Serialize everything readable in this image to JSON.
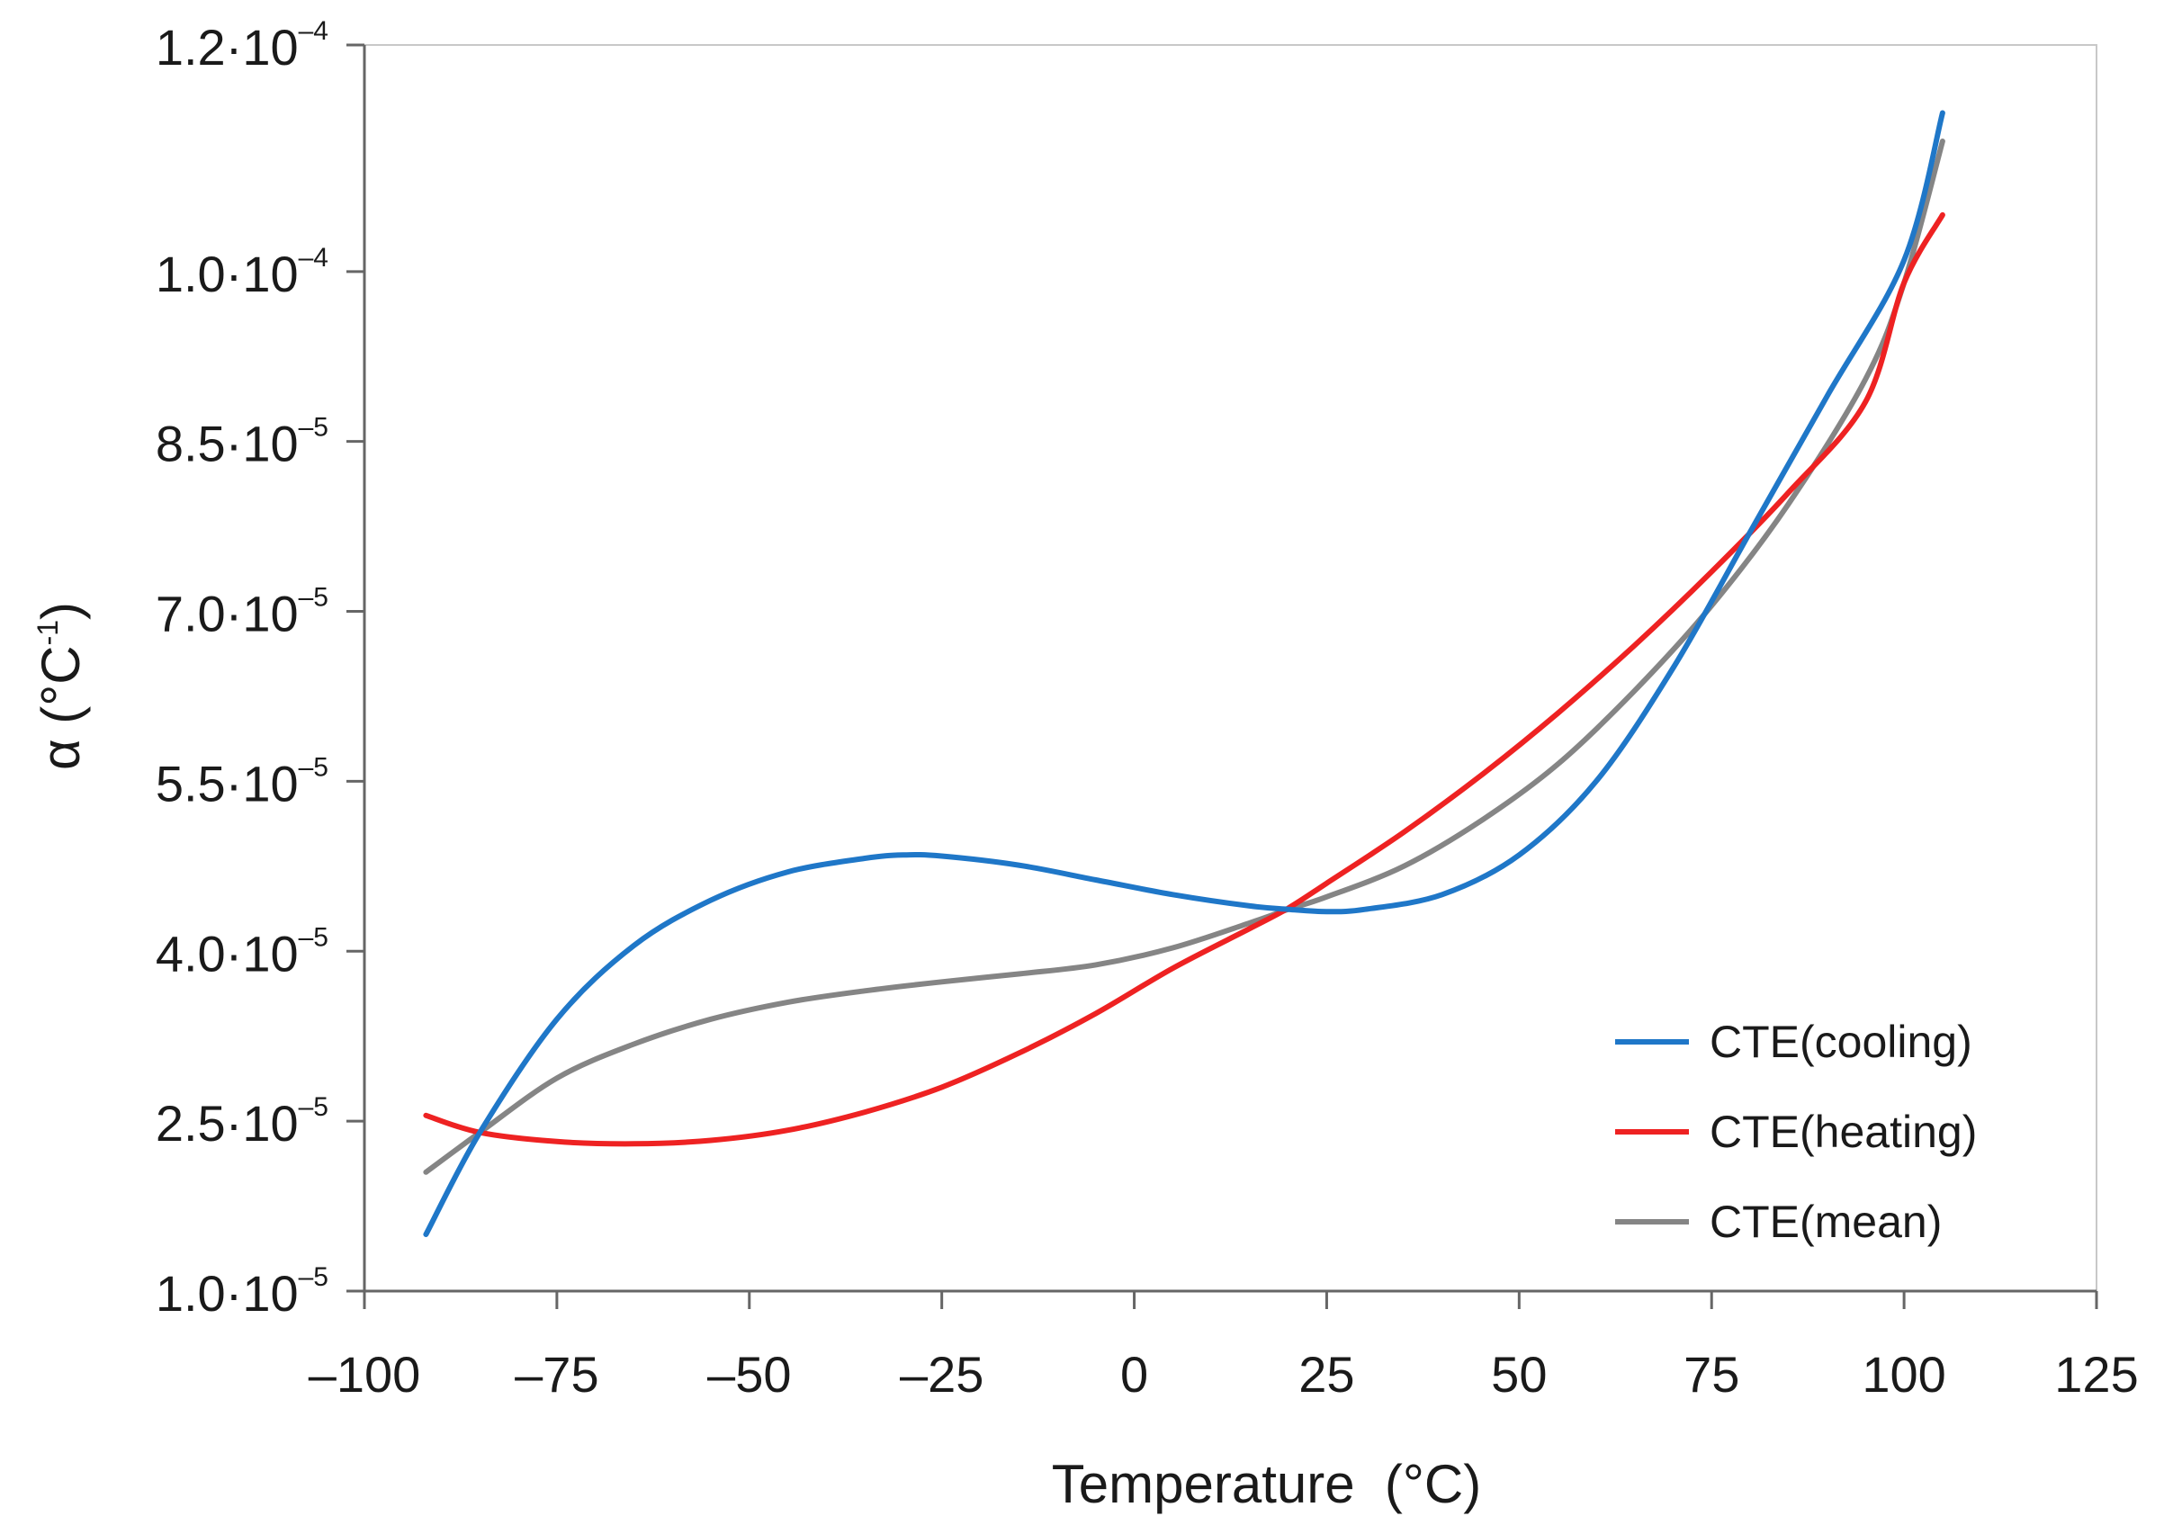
{
  "chart_data": {
    "type": "line",
    "title": "",
    "xlabel": "Temperature  (°C)",
    "ylabel": {
      "base": "α (°C",
      "sup": "-1",
      "close": ")"
    },
    "xlim": [
      -100,
      125
    ],
    "ylim": [
      1e-05,
      0.00012
    ],
    "x_ticks": [
      {
        "value": -100,
        "label": "–100"
      },
      {
        "value": -75,
        "label": "–75"
      },
      {
        "value": -50,
        "label": "–50"
      },
      {
        "value": -25,
        "label": "–25"
      },
      {
        "value": 0,
        "label": "0"
      },
      {
        "value": 25,
        "label": "25"
      },
      {
        "value": 50,
        "label": "50"
      },
      {
        "value": 75,
        "label": "75"
      },
      {
        "value": 100,
        "label": "100"
      },
      {
        "value": 125,
        "label": "125"
      }
    ],
    "y_ticks": [
      {
        "value": 1e-05,
        "mantissa": "1.0·10",
        "exp": "–5"
      },
      {
        "value": 2.5e-05,
        "mantissa": "2.5·10",
        "exp": "–5"
      },
      {
        "value": 4e-05,
        "mantissa": "4.0·10",
        "exp": "–5"
      },
      {
        "value": 5.5e-05,
        "mantissa": "5.5·10",
        "exp": "–5"
      },
      {
        "value": 7e-05,
        "mantissa": "7.0·10",
        "exp": "–5"
      },
      {
        "value": 8.5e-05,
        "mantissa": "8.5·10",
        "exp": "–5"
      },
      {
        "value": 0.0001,
        "mantissa": "1.0·10",
        "exp": "–4"
      },
      {
        "value": 0.00012,
        "mantissa": "1.2·10",
        "exp": "–4"
      }
    ],
    "grid": false,
    "legend_position": "bottom-right",
    "series": [
      {
        "name": "CTE(cooling)",
        "color": "#1f77c8",
        "x": [
          -92,
          -85,
          -75,
          -65,
          -55,
          -45,
          -35,
          -30,
          -25,
          -15,
          -5,
          5,
          15,
          20,
          25,
          30,
          40,
          50,
          60,
          70,
          80,
          90,
          100,
          105
        ],
        "y": [
          1.5e-05,
          2.4e-05,
          3.4e-05,
          4.05e-05,
          4.45e-05,
          4.7e-05,
          4.82e-05,
          4.85e-05,
          4.84e-05,
          4.76e-05,
          4.63e-05,
          4.5e-05,
          4.4e-05,
          4.37e-05,
          4.35e-05,
          4.37e-05,
          4.5e-05,
          4.85e-05,
          5.5e-05,
          6.5e-05,
          7.7e-05,
          8.9e-05,
          0.000101,
          0.000114
        ]
      },
      {
        "name": "CTE(heating)",
        "color": "#ee2222",
        "x": [
          -92,
          -85,
          -75,
          -65,
          -55,
          -45,
          -35,
          -25,
          -15,
          -5,
          5,
          15,
          20,
          25,
          35,
          45,
          55,
          65,
          75,
          85,
          95,
          100,
          105
        ],
        "y": [
          2.55e-05,
          2.4e-05,
          2.32e-05,
          2.3e-05,
          2.33e-05,
          2.42e-05,
          2.58e-05,
          2.8e-05,
          3.1e-05,
          3.45e-05,
          3.85e-05,
          4.2e-05,
          4.38e-05,
          4.6e-05,
          5.05e-05,
          5.55e-05,
          6.1e-05,
          6.7e-05,
          7.35e-05,
          8.05e-05,
          8.85e-05,
          9.9e-05,
          0.000105
        ]
      },
      {
        "name": "CTE(mean)",
        "color": "#858585",
        "x": [
          -92,
          -85,
          -75,
          -65,
          -55,
          -45,
          -35,
          -25,
          -15,
          -5,
          5,
          15,
          20,
          25,
          35,
          45,
          55,
          65,
          75,
          85,
          95,
          100,
          105
        ],
        "y": [
          2.05e-05,
          2.4e-05,
          2.88e-05,
          3.18e-05,
          3.4e-05,
          3.55e-05,
          3.65e-05,
          3.73e-05,
          3.8e-05,
          3.88e-05,
          4.03e-05,
          4.25e-05,
          4.37e-05,
          4.48e-05,
          4.75e-05,
          5.15e-05,
          5.65e-05,
          6.3e-05,
          7.05e-05,
          7.95e-05,
          9.05e-05,
          9.9e-05,
          0.0001115
        ]
      }
    ]
  }
}
